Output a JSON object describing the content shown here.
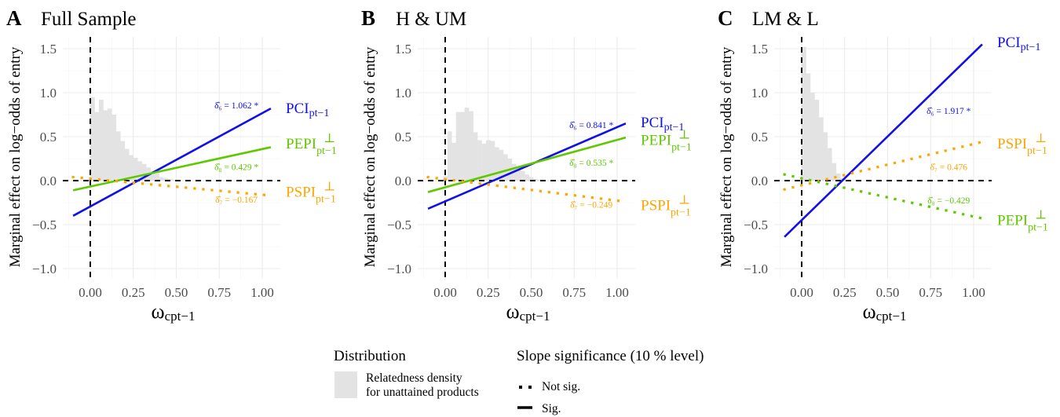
{
  "chart_data": [
    {
      "type": "line",
      "panel_letter": "A",
      "title": "Full Sample",
      "xlabel": "ω_cpt−1",
      "ylabel": "Marginal effect on log−odds of entry",
      "xlim": [
        -0.12,
        1.08
      ],
      "ylim": [
        -1.1,
        1.65
      ],
      "x_ticks": [
        "0.00",
        "0.25",
        "0.50",
        "0.75",
        "1.00"
      ],
      "x_tick_values": [
        0,
        0.25,
        0.5,
        0.75,
        1.0
      ],
      "y_ticks": [
        "1.5",
        "1.0",
        "0.5",
        "0.0",
        "−0.5",
        "−1.0"
      ],
      "y_tick_values": [
        1.5,
        1.0,
        0.5,
        0.0,
        -0.5,
        -1.0
      ],
      "grid": true,
      "reference_lines": {
        "x": 0,
        "y": 0,
        "style": "dashed"
      },
      "histogram": {
        "name": "Relatedness density for unattained products",
        "bin_start": 0.0,
        "bin_width": 0.025,
        "values": [
          0.95,
          0.78,
          0.92,
          0.8,
          0.82,
          0.75,
          0.56,
          0.45,
          0.36,
          0.29,
          0.26,
          0.22,
          0.19,
          0.15,
          0.11,
          0.08,
          0.04,
          0.03,
          0.02,
          0.01
        ]
      },
      "series": [
        {
          "name": "PCI",
          "label_main": "PCI",
          "label_sub": "pt−1",
          "label_sup": "",
          "color": "#1010E8",
          "significant": true,
          "x": [
            -0.1,
            1.05
          ],
          "y": [
            -0.4,
            0.82
          ],
          "annotation": "δ̂₆ = 1.062 *",
          "annot_x": 0.85,
          "annot_y": 0.82,
          "label_y": 0.82
        },
        {
          "name": "PEPI⊥",
          "label_main": "PEPI",
          "label_sub": "pt−1",
          "label_sup": "⊥",
          "color": "#5FC800",
          "significant": true,
          "x": [
            -0.1,
            1.05
          ],
          "y": [
            -0.11,
            0.38
          ],
          "annotation": "δ̂₈ = 0.429 *",
          "annot_x": 0.85,
          "annot_y": 0.12,
          "label_y": 0.42
        },
        {
          "name": "PSPI⊥",
          "label_main": "PSPI",
          "label_sub": "pt−1",
          "label_sup": "⊥",
          "color": "#FFA500",
          "significant": false,
          "x": [
            -0.1,
            1.05
          ],
          "y": [
            0.04,
            -0.17
          ],
          "annotation": "δ̂₇ = −0.167",
          "annot_x": 0.85,
          "annot_y": -0.25,
          "label_y": -0.13
        }
      ]
    },
    {
      "type": "line",
      "panel_letter": "B",
      "title": "H & UM",
      "xlabel": "ω_cpt−1",
      "ylabel": "Marginal effect on log−odds of entry",
      "xlim": [
        -0.12,
        1.08
      ],
      "ylim": [
        -1.1,
        1.65
      ],
      "x_ticks": [
        "0.00",
        "0.25",
        "0.50",
        "0.75",
        "1.00"
      ],
      "x_tick_values": [
        0,
        0.25,
        0.5,
        0.75,
        1.0
      ],
      "y_ticks": [
        "1.5",
        "1.0",
        "0.5",
        "0.0",
        "−0.5",
        "−1.0"
      ],
      "y_tick_values": [
        1.5,
        1.0,
        0.5,
        0.0,
        -0.5,
        -1.0
      ],
      "grid": true,
      "reference_lines": {
        "x": 0,
        "y": 0,
        "style": "dashed"
      },
      "histogram": {
        "name": "Relatedness density for unattained products",
        "bin_start": -0.0125,
        "bin_width": 0.025,
        "values": [
          0.05,
          0.56,
          0.43,
          0.78,
          0.78,
          0.83,
          0.79,
          0.55,
          0.46,
          0.42,
          0.46,
          0.45,
          0.38,
          0.35,
          0.3,
          0.25,
          0.19,
          0.15,
          0.11,
          0.07,
          0.04,
          0.02,
          0.01
        ]
      },
      "series": [
        {
          "name": "PCI",
          "label_main": "PCI",
          "label_sub": "pt−1",
          "label_sup": "",
          "color": "#1010E8",
          "significant": true,
          "x": [
            -0.1,
            1.05
          ],
          "y": [
            -0.32,
            0.65
          ],
          "annotation": "δ̂₆ = 0.841 *",
          "annot_x": 0.85,
          "annot_y": 0.6,
          "label_y": 0.66
        },
        {
          "name": "PEPI⊥",
          "label_main": "PEPI",
          "label_sub": "pt−1",
          "label_sup": "⊥",
          "color": "#5FC800",
          "significant": true,
          "x": [
            -0.1,
            1.05
          ],
          "y": [
            -0.13,
            0.49
          ],
          "annotation": "δ̂₈ = 0.535 *",
          "annot_x": 0.85,
          "annot_y": 0.17,
          "label_y": 0.46
        },
        {
          "name": "PSPI⊥",
          "label_main": "PSPI",
          "label_sub": "pt−1",
          "label_sup": "⊥",
          "color": "#FFA500",
          "significant": false,
          "x": [
            -0.1,
            1.05
          ],
          "y": [
            0.04,
            -0.24
          ],
          "annotation": "δ̂₇ = −0.249",
          "annot_x": 0.85,
          "annot_y": -0.31,
          "label_y": -0.28
        }
      ]
    },
    {
      "type": "line",
      "panel_letter": "C",
      "title": "LM & L",
      "xlabel": "ω_cpt−1",
      "ylabel": "Marginal effect on log−odds of entry",
      "xlim": [
        -0.12,
        1.08
      ],
      "ylim": [
        -1.1,
        1.65
      ],
      "x_ticks": [
        "0.00",
        "0.25",
        "0.50",
        "0.75",
        "1.00"
      ],
      "x_tick_values": [
        0,
        0.25,
        0.5,
        0.75,
        1.0
      ],
      "y_ticks": [
        "1.5",
        "1.0",
        "0.5",
        "0.0",
        "−0.5",
        "−1.0"
      ],
      "y_tick_values": [
        1.5,
        1.0,
        0.5,
        0.0,
        -0.5,
        -1.0
      ],
      "grid": true,
      "reference_lines": {
        "x": 0,
        "y": 0,
        "style": "dashed"
      },
      "histogram": {
        "name": "Relatedness density for unattained products",
        "bin_start": 0.0,
        "bin_width": 0.025,
        "values": [
          1.52,
          1.22,
          1.0,
          0.92,
          0.72,
          0.55,
          0.37,
          0.2,
          0.08,
          0.03,
          0.01
        ]
      },
      "series": [
        {
          "name": "PCI",
          "label_main": "PCI",
          "label_sub": "pt−1",
          "label_sup": "",
          "color": "#1010E8",
          "significant": true,
          "x": [
            -0.1,
            1.05
          ],
          "y": [
            -0.64,
            1.55
          ],
          "annotation": "δ̂₆ = 1.917 *",
          "annot_x": 0.855,
          "annot_y": 0.76,
          "label_y": 1.57
        },
        {
          "name": "PSPI⊥",
          "label_main": "PSPI",
          "label_sub": "pt−1",
          "label_sup": "⊥",
          "color": "#FFA500",
          "significant": false,
          "x": [
            -0.1,
            1.05
          ],
          "y": [
            -0.1,
            0.44
          ],
          "annotation": "δ̂₇ = 0.476",
          "annot_x": 0.855,
          "annot_y": 0.12,
          "label_y": 0.42
        },
        {
          "name": "PEPI⊥",
          "label_main": "PEPI",
          "label_sub": "pt−1",
          "label_sup": "⊥",
          "color": "#5FC800",
          "significant": false,
          "x": [
            -0.1,
            1.05
          ],
          "y": [
            0.07,
            -0.43
          ],
          "annotation": "δ̂₈ = −0.429",
          "annot_x": 0.855,
          "annot_y": -0.26,
          "label_y": -0.45
        }
      ]
    }
  ],
  "legend": {
    "distribution_title": "Distribution",
    "distribution_item_line1": "Relatedness density",
    "distribution_item_line2": "for unattained products",
    "distribution_color": "#E3E3E3",
    "significance_title": "Slope significance (10 % level)",
    "not_sig_label": "Not sig.",
    "sig_label": "Sig."
  }
}
